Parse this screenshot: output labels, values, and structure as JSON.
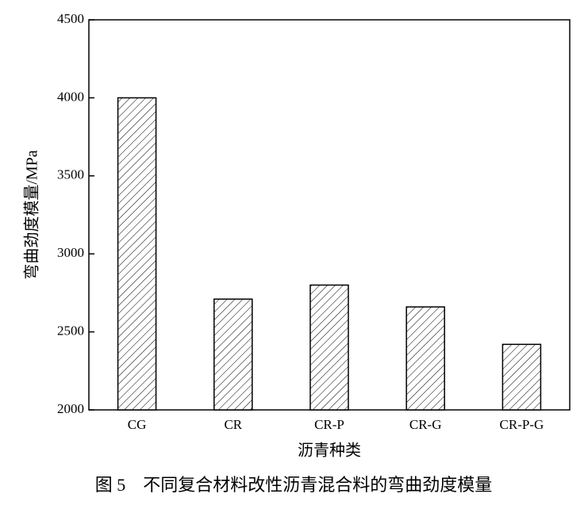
{
  "chart_data": {
    "type": "bar",
    "y_label": "弯曲劲度模量/MPa",
    "x_label": "沥青种类",
    "caption": "图 5　不同复合材料改性沥青混合料的弯曲劲度模量",
    "categories": [
      "CG",
      "CR",
      "CR-P",
      "CR-G",
      "CR-P-G"
    ],
    "values": [
      4000,
      2710,
      2800,
      2660,
      2420
    ],
    "color": "#000000",
    "ylim": [
      2000,
      4500
    ],
    "yticks": [
      2000,
      2500,
      3000,
      3500,
      4000,
      4500
    ],
    "grid": false
  }
}
